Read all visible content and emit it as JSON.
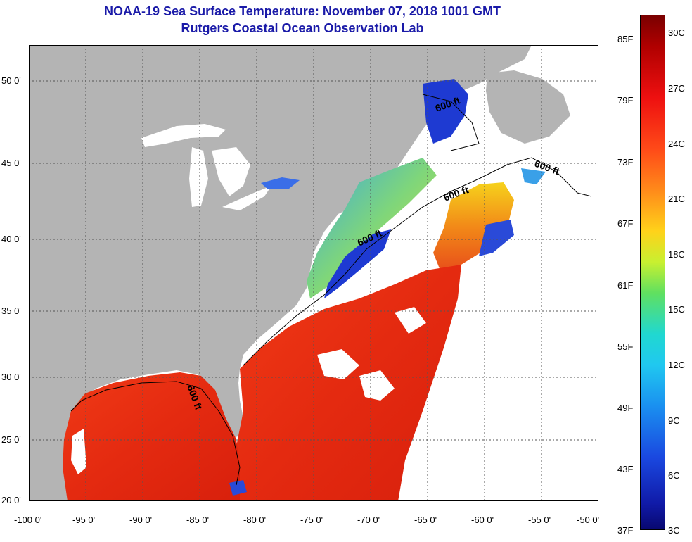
{
  "title": {
    "line1": "NOAA-19 Sea Surface Temperature:  November 07, 2018 1001 GMT",
    "line2": "Rutgers Coastal Ocean Observation Lab"
  },
  "axes": {
    "lat_ticks": [
      "50 0'",
      "45 0'",
      "40 0'",
      "35 0'",
      "30 0'",
      "25 0'",
      "20 0'"
    ],
    "lon_ticks": [
      "-100 0'",
      "-95 0'",
      "-90 0'",
      "-85 0'",
      "-80 0'",
      "-75 0'",
      "-70 0'",
      "-65 0'",
      "-60 0'",
      "-55 0'",
      "-50 0'"
    ]
  },
  "contour_labels": [
    "600 ft",
    "600 ft",
    "600 ft",
    "600 ft",
    "600 ft"
  ],
  "colorbar": {
    "fahrenheit": [
      "85F",
      "79F",
      "73F",
      "67F",
      "61F",
      "55F",
      "49F",
      "43F",
      "37F"
    ],
    "celsius": [
      "30C",
      "27C",
      "24C",
      "21C",
      "18C",
      "15C",
      "12C",
      "9C",
      "6C",
      "3C"
    ]
  },
  "colors": {
    "land": "#b4b4b4",
    "cloud": "#ffffff",
    "title": "#1a1aa8"
  }
}
